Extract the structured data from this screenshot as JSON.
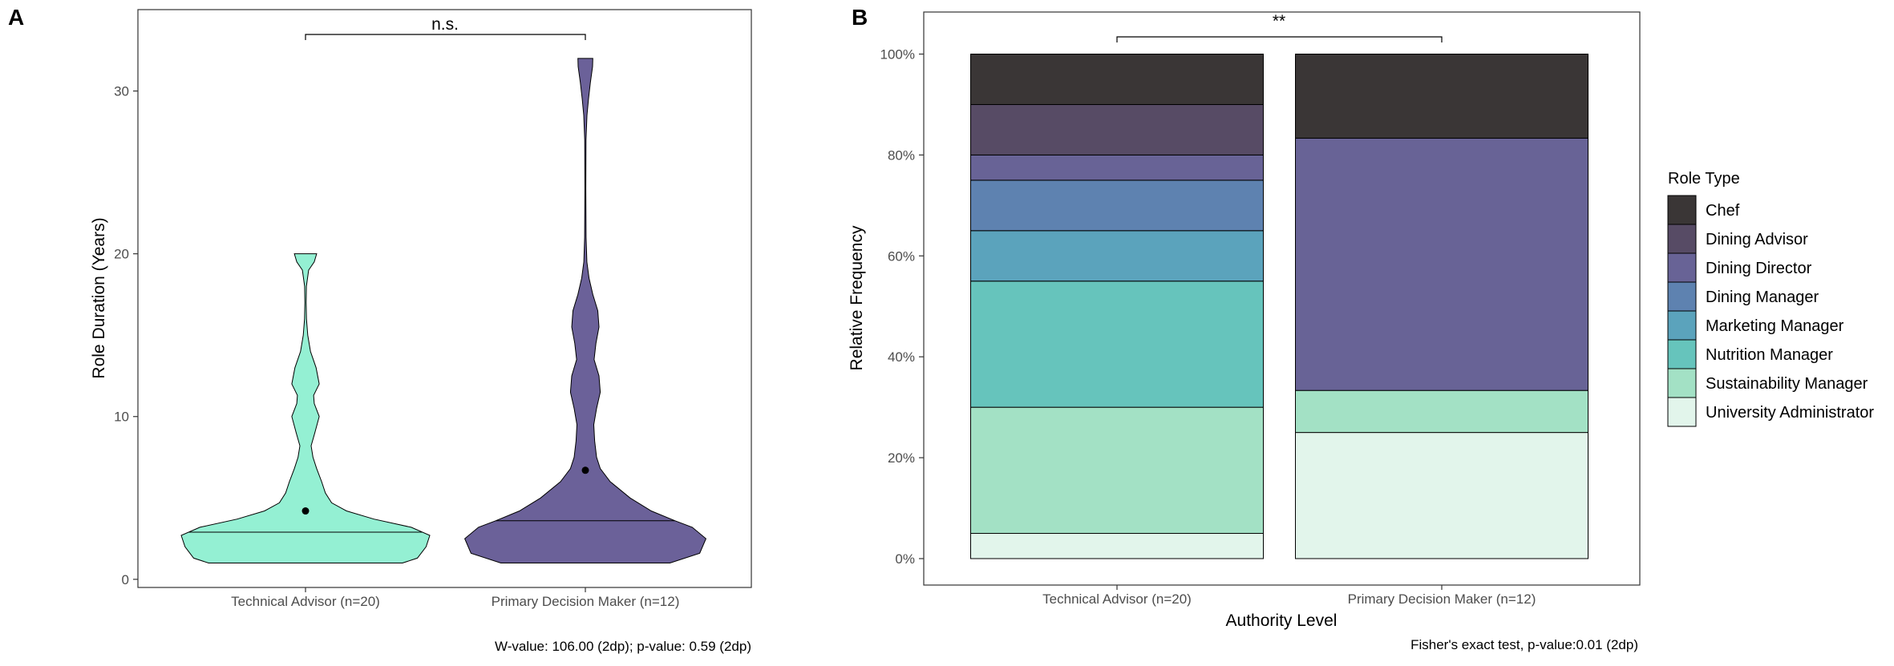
{
  "chart_data": [
    {
      "type": "violin",
      "panel_label": "A",
      "ylabel": "Role Duration (Years)",
      "ylim": [
        -0.5,
        35
      ],
      "yticks": [
        "0",
        "10",
        "20",
        "30"
      ],
      "categories": [
        "Technical Advisor (n=20)",
        "Primary Decision Maker (n=12)"
      ],
      "series": [
        {
          "category": "Technical Advisor (n=20)",
          "color": "#94F0D3",
          "min": 1,
          "max": 20,
          "median": 2.9,
          "mean": 4.2,
          "density": [
            [
              1,
              0.78
            ],
            [
              1.3,
              0.9
            ],
            [
              2,
              0.97
            ],
            [
              2.7,
              1.0
            ],
            [
              3.2,
              0.85
            ],
            [
              3.7,
              0.55
            ],
            [
              4.2,
              0.33
            ],
            [
              4.7,
              0.21
            ],
            [
              5.3,
              0.16
            ],
            [
              6,
              0.13
            ],
            [
              6.8,
              0.09
            ],
            [
              7.5,
              0.06
            ],
            [
              8.2,
              0.045
            ],
            [
              9,
              0.075
            ],
            [
              10,
              0.11
            ],
            [
              10.8,
              0.07
            ],
            [
              11.3,
              0.065
            ],
            [
              12,
              0.11
            ],
            [
              13,
              0.085
            ],
            [
              14,
              0.04
            ],
            [
              15,
              0.018
            ],
            [
              16,
              0.008
            ],
            [
              17,
              0.005
            ],
            [
              18,
              0.007
            ],
            [
              19,
              0.025
            ],
            [
              19.5,
              0.07
            ],
            [
              20,
              0.09
            ]
          ]
        },
        {
          "category": "Primary Decision Maker (n=12)",
          "color": "#6B6199",
          "min": 1,
          "max": 32,
          "median": 3.6,
          "mean": 6.7,
          "density": [
            [
              1,
              0.68
            ],
            [
              1.6,
              0.92
            ],
            [
              2.5,
              0.97
            ],
            [
              3.2,
              0.86
            ],
            [
              3.6,
              0.72
            ],
            [
              4.2,
              0.53
            ],
            [
              5,
              0.36
            ],
            [
              6,
              0.2
            ],
            [
              6.8,
              0.12
            ],
            [
              7.5,
              0.09
            ],
            [
              8.5,
              0.075
            ],
            [
              9.5,
              0.068
            ],
            [
              10.5,
              0.09
            ],
            [
              11.5,
              0.12
            ],
            [
              12.5,
              0.11
            ],
            [
              13.5,
              0.07
            ],
            [
              14.5,
              0.085
            ],
            [
              15.5,
              0.11
            ],
            [
              16.5,
              0.1
            ],
            [
              17.5,
              0.06
            ],
            [
              18.5,
              0.03
            ],
            [
              19.5,
              0.012
            ],
            [
              21,
              0.006
            ],
            [
              24,
              0.004
            ],
            [
              27,
              0.005
            ],
            [
              28.5,
              0.013
            ],
            [
              29.5,
              0.025
            ],
            [
              30.5,
              0.04
            ],
            [
              31.5,
              0.058
            ],
            [
              32,
              0.06
            ]
          ]
        }
      ],
      "annotation": "n.s.",
      "footnote": "W-value: 106.00 (2dp); p-value: 0.59 (2dp)"
    },
    {
      "type": "stacked-bar",
      "panel_label": "B",
      "xlabel": "Authority Level",
      "ylabel": "Relative Frequency",
      "ylim": [
        0,
        1.05
      ],
      "yticks": [
        "0%",
        "20%",
        "40%",
        "60%",
        "80%",
        "100%"
      ],
      "categories": [
        "Technical Advisor (n=20)",
        "Primary Decision Maker (n=12)"
      ],
      "legend_title": "Role Type",
      "legend_position": "right",
      "series": [
        {
          "name": "Chef",
          "color": "#3A3636",
          "values": [
            0.1,
            0.1667
          ]
        },
        {
          "name": "Dining Advisor",
          "color": "#574B65",
          "values": [
            0.1,
            0.0
          ]
        },
        {
          "name": "Dining Director",
          "color": "#686396",
          "values": [
            0.05,
            0.5
          ]
        },
        {
          "name": "Dining Manager",
          "color": "#5E82B0",
          "values": [
            0.1,
            0.0
          ]
        },
        {
          "name": "Marketing Manager",
          "color": "#5BA3BC",
          "values": [
            0.1,
            0.0
          ]
        },
        {
          "name": "Nutrition Manager",
          "color": "#66C4BC",
          "values": [
            0.25,
            0.0
          ]
        },
        {
          "name": "Sustainability Manager",
          "color": "#A3E1C5",
          "values": [
            0.25,
            0.0833
          ]
        },
        {
          "name": "University Administrator",
          "color": "#E2F5EB",
          "values": [
            0.05,
            0.25
          ]
        }
      ],
      "annotation": "**",
      "footnote": "Fisher's exact test, p-value:0.01 (2dp)"
    }
  ]
}
